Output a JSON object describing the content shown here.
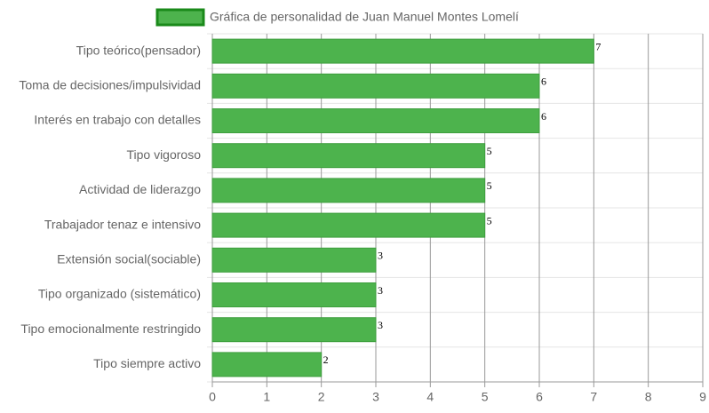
{
  "chart_data": {
    "type": "bar",
    "orientation": "horizontal",
    "categories": [
      "Tipo teórico(pensador)",
      "Toma de decisiones/impulsividad",
      "Interés en trabajo con detalles",
      "Tipo vigoroso",
      "Actividad de liderazgo",
      "Trabajador tenaz e intensivo",
      "Extensión social(sociable)",
      "Tipo organizado (sistemático)",
      "Tipo emocionalmente restringido",
      "Tipo siempre activo"
    ],
    "series": [
      {
        "name": "Gráfica de personalidad de Juan Manuel Montes Lomelí",
        "color": "#4db34d",
        "values": [
          7,
          6,
          6,
          5,
          5,
          5,
          3,
          3,
          3,
          2
        ]
      }
    ],
    "xlim": [
      0,
      9
    ],
    "xticks": [
      0,
      1,
      2,
      3,
      4,
      5,
      6,
      7,
      8,
      9
    ],
    "grid": true,
    "legend": "top"
  }
}
